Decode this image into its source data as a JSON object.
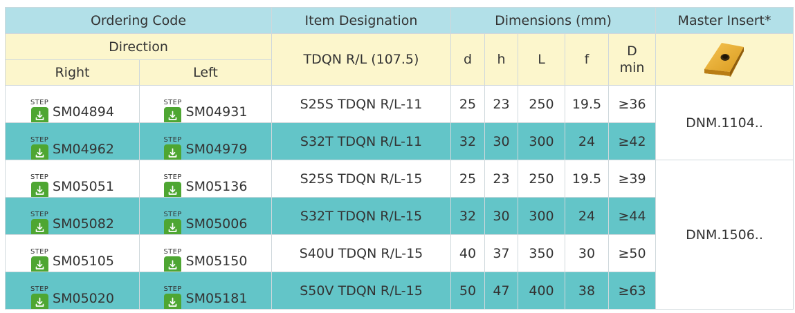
{
  "headers": {
    "ordering_code": "Ordering Code",
    "item_designation": "Item Designation",
    "dimensions": "Dimensions (mm)",
    "master_insert": "Master Insert*",
    "direction": "Direction",
    "right": "Right",
    "left": "Left",
    "item_family": "TDQN R/L (107.5)",
    "d": "d",
    "h": "h",
    "L": "L",
    "f": "f",
    "D": "D",
    "min": "min"
  },
  "step_label": "STEP",
  "rows": [
    {
      "right": "SM04894",
      "left": "SM04931",
      "item": "S25S TDQN R/L-11",
      "d": "25",
      "h": "23",
      "L": "250",
      "f": "19.5",
      "dmin": "≥36"
    },
    {
      "right": "SM04962",
      "left": "SM04979",
      "item": "S32T TDQN R/L-11",
      "d": "32",
      "h": "30",
      "L": "300",
      "f": "24",
      "dmin": "≥42"
    },
    {
      "right": "SM05051",
      "left": "SM05136",
      "item": "S25S TDQN R/L-15",
      "d": "25",
      "h": "23",
      "L": "250",
      "f": "19.5",
      "dmin": "≥39"
    },
    {
      "right": "SM05082",
      "left": "SM05006",
      "item": "S32T TDQN R/L-15",
      "d": "32",
      "h": "30",
      "L": "300",
      "f": "24",
      "dmin": "≥44"
    },
    {
      "right": "SM05105",
      "left": "SM05150",
      "item": "S40U TDQN R/L-15",
      "d": "40",
      "h": "37",
      "L": "350",
      "f": "30",
      "dmin": "≥50"
    },
    {
      "right": "SM05020",
      "left": "SM05181",
      "item": "S50V TDQN R/L-15",
      "d": "50",
      "h": "47",
      "L": "400",
      "f": "38",
      "dmin": "≥63"
    }
  ],
  "inserts": [
    "DNM.1104..",
    "DNM.1506.."
  ],
  "colors": {
    "header_blue": "#b2e0e8",
    "header_yellow": "#fcf6cc",
    "row_teal": "#63c5c8",
    "download_green": "#4ea632",
    "insert_gold": "#d99a1e"
  },
  "icons": {
    "download": "download-icon",
    "insert": "insert-image"
  }
}
